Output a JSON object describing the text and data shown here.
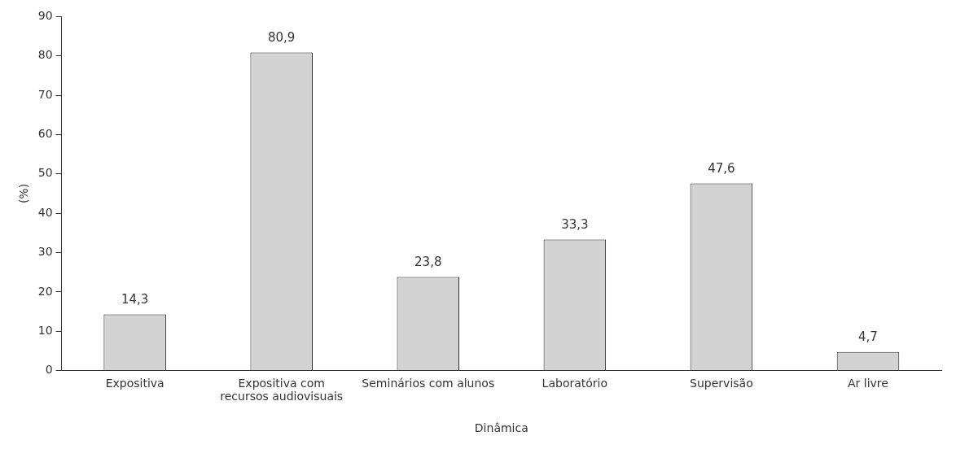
{
  "chart_data": {
    "type": "bar",
    "xlabel": "Dinâmica",
    "ylabel": "(%)",
    "categories": [
      "Expositiva",
      "Expositiva com recursos audiovisuais",
      "Seminários com alunos",
      "Laboratório",
      "Supervisão",
      "Ar livre"
    ],
    "values": [
      14.3,
      80.9,
      23.8,
      33.3,
      47.6,
      4.7
    ],
    "value_labels": [
      "14,3",
      "80,9",
      "23,8",
      "33,3",
      "47,6",
      "4,7"
    ],
    "color": "#d3d3d3",
    "ylim": [
      0,
      90
    ],
    "yticks": [
      0,
      10,
      20,
      30,
      40,
      50,
      60,
      70,
      80,
      90
    ],
    "grid": false,
    "legend": false
  }
}
